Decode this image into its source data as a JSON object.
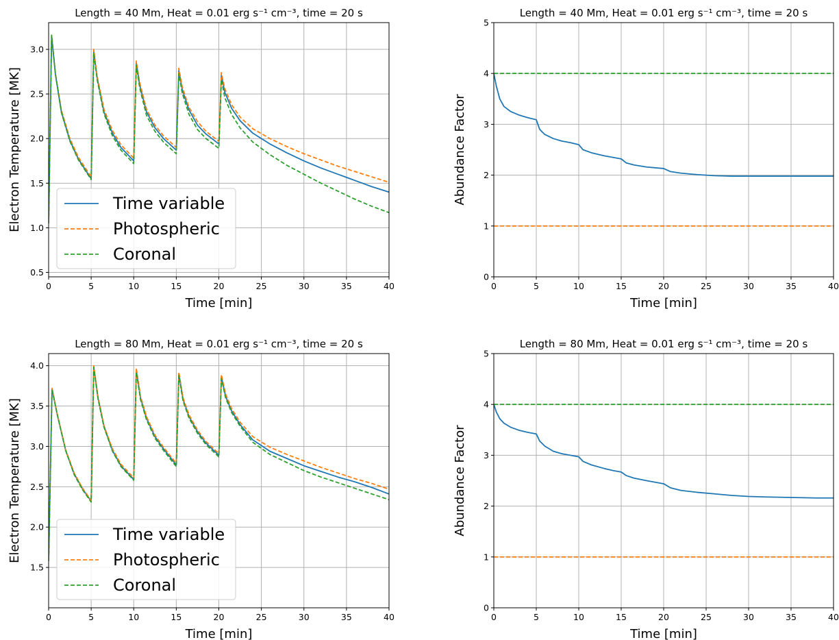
{
  "colors": {
    "time_variable": "#1f77b4",
    "photospheric": "#ff7f0e",
    "coronal": "#2ca02c",
    "grid": "#b0b0b0"
  },
  "chart_data": [
    {
      "type": "line",
      "title": "Length = 40 Mm, Heat = 0.01 erg s⁻¹ cm⁻³, time = 20 s",
      "xlabel": "Time [min]",
      "ylabel": "Electron Temperature [MK]",
      "xlim": [
        0,
        40
      ],
      "ylim": [
        0.45,
        3.3
      ],
      "xticks": [
        "0",
        "5",
        "10",
        "15",
        "20",
        "25",
        "30",
        "35",
        "40"
      ],
      "yticks": [
        "0.5",
        "1.0",
        "1.5",
        "2.0",
        "2.5",
        "3.0"
      ],
      "grid": true,
      "legend": {
        "position": "lower-left",
        "entries": [
          "Time variable",
          "Photospheric",
          "Coronal"
        ]
      },
      "series": [
        {
          "name": "Time variable",
          "style": "solid",
          "x": [
            0,
            0.35,
            0.8,
            1.5,
            2.5,
            3.5,
            5.0,
            5.3,
            5.7,
            6.5,
            7.5,
            8.5,
            10.0,
            10.3,
            10.7,
            11.5,
            12.5,
            13.5,
            15.0,
            15.3,
            15.7,
            16.5,
            17.5,
            18.5,
            20.0,
            20.3,
            20.7,
            21.5,
            22.5,
            24,
            26,
            28,
            30,
            32,
            34,
            36,
            38,
            40
          ],
          "y": [
            1.05,
            3.15,
            2.72,
            2.3,
            1.98,
            1.77,
            1.55,
            2.98,
            2.68,
            2.3,
            2.06,
            1.9,
            1.75,
            2.85,
            2.6,
            2.3,
            2.12,
            2.0,
            1.87,
            2.76,
            2.55,
            2.32,
            2.15,
            2.05,
            1.94,
            2.71,
            2.52,
            2.34,
            2.2,
            2.06,
            1.94,
            1.84,
            1.75,
            1.67,
            1.6,
            1.53,
            1.46,
            1.4
          ]
        },
        {
          "name": "Photospheric",
          "style": "dashed",
          "x": [
            0,
            0.35,
            0.8,
            1.5,
            2.5,
            3.5,
            5.0,
            5.3,
            5.7,
            6.5,
            7.5,
            8.5,
            10.0,
            10.3,
            10.7,
            11.5,
            12.5,
            13.5,
            15.0,
            15.3,
            15.7,
            16.5,
            17.5,
            18.5,
            20.0,
            20.3,
            20.7,
            21.5,
            22.5,
            24,
            26,
            28,
            30,
            32,
            34,
            36,
            38,
            40
          ],
          "y": [
            1.05,
            3.16,
            2.73,
            2.32,
            2.0,
            1.79,
            1.57,
            3.0,
            2.7,
            2.33,
            2.09,
            1.93,
            1.78,
            2.87,
            2.63,
            2.33,
            2.15,
            2.03,
            1.9,
            2.79,
            2.58,
            2.35,
            2.19,
            2.08,
            1.97,
            2.74,
            2.56,
            2.38,
            2.24,
            2.11,
            2.0,
            1.91,
            1.83,
            1.76,
            1.69,
            1.63,
            1.57,
            1.51
          ]
        },
        {
          "name": "Coronal",
          "style": "dashed",
          "x": [
            0,
            0.35,
            0.8,
            1.5,
            2.5,
            3.5,
            5.0,
            5.3,
            5.7,
            6.5,
            7.5,
            8.5,
            10.0,
            10.3,
            10.7,
            11.5,
            12.5,
            13.5,
            15.0,
            15.3,
            15.7,
            16.5,
            17.5,
            18.5,
            20.0,
            20.3,
            20.7,
            21.5,
            22.5,
            24,
            26,
            28,
            30,
            32,
            34,
            36,
            38,
            40
          ],
          "y": [
            1.05,
            3.16,
            2.72,
            2.29,
            1.97,
            1.76,
            1.54,
            2.96,
            2.66,
            2.28,
            2.03,
            1.87,
            1.72,
            2.82,
            2.57,
            2.26,
            2.08,
            1.96,
            1.83,
            2.73,
            2.51,
            2.27,
            2.1,
            2.0,
            1.89,
            2.66,
            2.46,
            2.27,
            2.12,
            1.96,
            1.82,
            1.7,
            1.6,
            1.5,
            1.41,
            1.32,
            1.24,
            1.17
          ]
        }
      ]
    },
    {
      "type": "line",
      "title": "Length = 40 Mm, Heat = 0.01 erg s⁻¹ cm⁻³, time = 20 s",
      "xlabel": "Time [min]",
      "ylabel": "Abundance Factor",
      "xlim": [
        0,
        40
      ],
      "ylim": [
        0,
        5
      ],
      "xticks": [
        "0",
        "5",
        "10",
        "15",
        "20",
        "25",
        "30",
        "35",
        "40"
      ],
      "yticks": [
        "0",
        "1",
        "2",
        "3",
        "4",
        "5"
      ],
      "grid": true,
      "series": [
        {
          "name": "Time variable",
          "style": "solid",
          "x": [
            0,
            0.3,
            0.7,
            1.2,
            2,
            3,
            4,
            5.0,
            5.4,
            6,
            7,
            8,
            9,
            10.0,
            10.5,
            11.5,
            13,
            14,
            15.0,
            15.6,
            16.5,
            18,
            20.0,
            20.8,
            22,
            24,
            26,
            28,
            30,
            35,
            40
          ],
          "y": [
            4.0,
            3.75,
            3.5,
            3.35,
            3.25,
            3.18,
            3.13,
            3.09,
            2.9,
            2.8,
            2.72,
            2.67,
            2.64,
            2.6,
            2.5,
            2.44,
            2.38,
            2.35,
            2.32,
            2.24,
            2.2,
            2.16,
            2.13,
            2.07,
            2.04,
            2.01,
            1.99,
            1.98,
            1.98,
            1.98,
            1.98
          ]
        },
        {
          "name": "Photospheric",
          "style": "dashed",
          "x": [
            0,
            40
          ],
          "y": [
            1,
            1
          ]
        },
        {
          "name": "Coronal",
          "style": "dashed",
          "x": [
            0,
            40
          ],
          "y": [
            4,
            4
          ]
        }
      ]
    },
    {
      "type": "line",
      "title": "Length = 80 Mm, Heat = 0.01 erg s⁻¹ cm⁻³, time = 20 s",
      "xlabel": "Time [min]",
      "ylabel": "Electron Temperature [MK]",
      "xlim": [
        0,
        40
      ],
      "ylim": [
        1.0,
        4.15
      ],
      "xticks": [
        "0",
        "5",
        "10",
        "15",
        "20",
        "25",
        "30",
        "35",
        "40"
      ],
      "yticks": [
        "1.5",
        "2.0",
        "2.5",
        "3.0",
        "3.5",
        "4.0"
      ],
      "grid": true,
      "legend": {
        "position": "lower-left",
        "entries": [
          "Time variable",
          "Photospheric",
          "Coronal"
        ]
      },
      "series": [
        {
          "name": "Time variable",
          "style": "solid",
          "x": [
            0,
            0.4,
            1.0,
            2.0,
            3.0,
            4.0,
            5.0,
            5.3,
            5.8,
            6.5,
            7.5,
            8.5,
            10.0,
            10.3,
            10.8,
            11.5,
            12.5,
            13.5,
            15.0,
            15.3,
            15.8,
            16.5,
            17.5,
            18.5,
            20.0,
            20.3,
            20.8,
            21.5,
            22.5,
            24,
            26,
            28,
            30,
            32,
            34,
            36,
            38,
            40
          ],
          "y": [
            1.58,
            3.71,
            3.4,
            2.95,
            2.66,
            2.47,
            2.32,
            3.99,
            3.6,
            3.25,
            2.95,
            2.76,
            2.59,
            3.94,
            3.6,
            3.35,
            3.12,
            2.97,
            2.77,
            3.9,
            3.58,
            3.37,
            3.18,
            3.04,
            2.89,
            3.86,
            3.62,
            3.44,
            3.27,
            3.08,
            2.94,
            2.85,
            2.76,
            2.69,
            2.62,
            2.56,
            2.49,
            2.41
          ]
        },
        {
          "name": "Photospheric",
          "style": "dashed",
          "x": [
            0,
            0.4,
            1.0,
            2.0,
            3.0,
            4.0,
            5.0,
            5.3,
            5.8,
            6.5,
            7.5,
            8.5,
            10.0,
            10.3,
            10.8,
            11.5,
            12.5,
            13.5,
            15.0,
            15.3,
            15.8,
            16.5,
            17.5,
            18.5,
            20.0,
            20.3,
            20.8,
            21.5,
            22.5,
            24,
            26,
            28,
            30,
            32,
            34,
            36,
            38,
            40
          ],
          "y": [
            1.58,
            3.72,
            3.41,
            2.96,
            2.67,
            2.48,
            2.33,
            4.0,
            3.62,
            3.26,
            2.97,
            2.78,
            2.61,
            3.97,
            3.62,
            3.37,
            3.14,
            2.99,
            2.79,
            3.92,
            3.6,
            3.39,
            3.2,
            3.06,
            2.91,
            3.89,
            3.65,
            3.47,
            3.3,
            3.12,
            2.99,
            2.9,
            2.82,
            2.74,
            2.67,
            2.6,
            2.54,
            2.47
          ]
        },
        {
          "name": "Coronal",
          "style": "dashed",
          "x": [
            0,
            0.4,
            1.0,
            2.0,
            3.0,
            4.0,
            5.0,
            5.3,
            5.8,
            6.5,
            7.5,
            8.5,
            10.0,
            10.3,
            10.8,
            11.5,
            12.5,
            13.5,
            15.0,
            15.3,
            15.8,
            16.5,
            17.5,
            18.5,
            20.0,
            20.3,
            20.8,
            21.5,
            22.5,
            24,
            26,
            28,
            30,
            32,
            34,
            36,
            38,
            40
          ],
          "y": [
            1.58,
            3.71,
            3.4,
            2.95,
            2.65,
            2.46,
            2.31,
            3.98,
            3.59,
            3.24,
            2.94,
            2.75,
            2.58,
            3.92,
            3.58,
            3.33,
            3.1,
            2.95,
            2.75,
            3.88,
            3.56,
            3.35,
            3.16,
            3.02,
            2.87,
            3.84,
            3.6,
            3.42,
            3.25,
            3.05,
            2.9,
            2.8,
            2.7,
            2.62,
            2.55,
            2.48,
            2.41,
            2.34
          ]
        }
      ]
    },
    {
      "type": "line",
      "title": "Length = 80 Mm, Heat = 0.01 erg s⁻¹ cm⁻³, time = 20 s",
      "xlabel": "Time [min]",
      "ylabel": "Abundance Factor",
      "xlim": [
        0,
        40
      ],
      "ylim": [
        0,
        5
      ],
      "xticks": [
        "0",
        "5",
        "10",
        "15",
        "20",
        "25",
        "30",
        "35",
        "40"
      ],
      "yticks": [
        "0",
        "1",
        "2",
        "3",
        "4",
        "5"
      ],
      "grid": true,
      "series": [
        {
          "name": "Time variable",
          "style": "solid",
          "x": [
            0,
            0.3,
            0.7,
            1.2,
            2,
            3,
            4,
            5.0,
            5.4,
            6,
            7,
            8,
            9,
            10.0,
            10.5,
            11.5,
            13,
            14,
            15.0,
            15.6,
            16.5,
            18,
            20.0,
            20.8,
            22,
            24,
            26,
            28,
            30,
            32,
            35,
            38,
            40
          ],
          "y": [
            4.0,
            3.85,
            3.72,
            3.63,
            3.55,
            3.49,
            3.45,
            3.42,
            3.28,
            3.18,
            3.08,
            3.03,
            3.0,
            2.97,
            2.88,
            2.81,
            2.74,
            2.7,
            2.67,
            2.6,
            2.55,
            2.5,
            2.44,
            2.36,
            2.31,
            2.27,
            2.24,
            2.21,
            2.19,
            2.18,
            2.17,
            2.16,
            2.16
          ]
        },
        {
          "name": "Photospheric",
          "style": "dashed",
          "x": [
            0,
            40
          ],
          "y": [
            1,
            1
          ]
        },
        {
          "name": "Coronal",
          "style": "dashed",
          "x": [
            0,
            40
          ],
          "y": [
            4,
            4
          ]
        }
      ]
    }
  ]
}
